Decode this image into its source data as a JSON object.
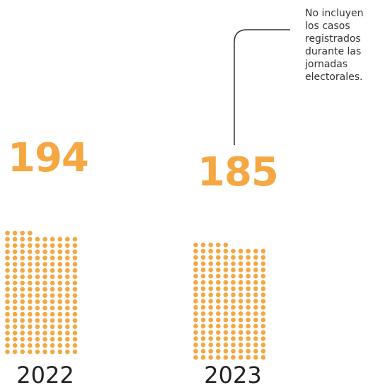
{
  "chart_data": {
    "type": "unit-dot",
    "units_per_row": 10,
    "color": "#f5a742",
    "series": [
      {
        "label": "2022",
        "value": 194
      },
      {
        "label": "2023",
        "value": 185
      }
    ],
    "annotation": {
      "target": "2023",
      "lines": [
        "No incluyen",
        "los casos",
        "registrados",
        "durante las",
        "jornadas",
        "electorales."
      ]
    }
  }
}
